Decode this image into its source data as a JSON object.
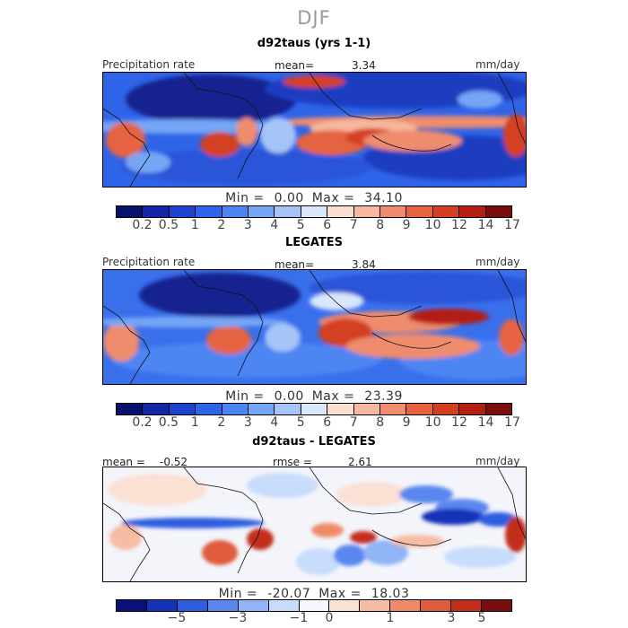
{
  "figure": {
    "title": "DJF",
    "panels": [
      {
        "id": "top",
        "subtitle": "d92taus (yrs 1-1)",
        "left_label": "Precipitation rate",
        "stat_label": "mean=",
        "stat_value": "3.34",
        "units": "mm/day",
        "min_label": "Min =",
        "min_value": "0.00",
        "max_label": "Max =",
        "max_value": "34.10",
        "colorbar_ticks": [
          "0.2",
          "0.5",
          "1",
          "2",
          "3",
          "4",
          "5",
          "6",
          "7",
          "8",
          "9",
          "10",
          "12",
          "14",
          "17"
        ]
      },
      {
        "id": "middle",
        "subtitle": "LEGATES",
        "left_label": "Precipitation rate",
        "stat_label": "mean=",
        "stat_value": "3.84",
        "units": "mm/day",
        "min_label": "Min =",
        "min_value": "0.00",
        "max_label": "Max =",
        "max_value": "23.39",
        "colorbar_ticks": [
          "0.2",
          "0.5",
          "1",
          "2",
          "3",
          "4",
          "5",
          "6",
          "7",
          "8",
          "9",
          "10",
          "12",
          "14",
          "17"
        ]
      },
      {
        "id": "bottom",
        "subtitle": "d92taus - LEGATES",
        "left_label": "mean =",
        "left_value": "-0.52",
        "stat_label": "rmse =",
        "stat_value": "2.61",
        "units": "mm/day",
        "min_label": "Min =",
        "min_value": "-20.07",
        "max_label": "Max =",
        "max_value": "18.03",
        "colorbar_ticks": [
          "−5",
          "−3",
          "−1",
          "0",
          "1",
          "3",
          "5"
        ]
      }
    ]
  },
  "colors": {
    "abs_scale": [
      "#08106e",
      "#1226a6",
      "#1e44cf",
      "#2f64e8",
      "#4d85f2",
      "#75a6f6",
      "#a5c5f8",
      "#d9e6fb",
      "#fbded0",
      "#f6b89e",
      "#ef8c6e",
      "#e5633f",
      "#d33f22",
      "#b41f14",
      "#7a0d0d"
    ],
    "diff_scale": [
      "#0a0f7a",
      "#1533b8",
      "#2f5ddf",
      "#5a87ef",
      "#90b4f6",
      "#c8dcfb",
      "#f6f8ff",
      "#fbe0d4",
      "#f6bca4",
      "#ef8a6a",
      "#e05a3d",
      "#c32e1c",
      "#7a0d0d"
    ]
  }
}
